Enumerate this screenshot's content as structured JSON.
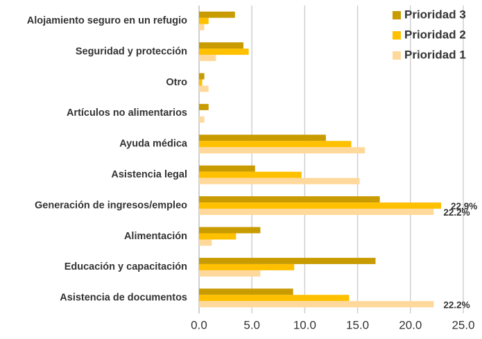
{
  "chart_data": {
    "type": "hbar",
    "categories": [
      "Alojamiento seguro en un refugio",
      "Seguridad y protección",
      "Otro",
      "Artículos no alimentarios",
      "Ayuda médica",
      "Asistencia legal",
      "Generación de ingresos/empleo",
      "Alimentación",
      "Educación y capacitación",
      "Asistencia de documentos"
    ],
    "series": [
      {
        "name": "Prioridad 3",
        "color": "#C89B00",
        "values": [
          3.4,
          4.2,
          0.5,
          0.9,
          12.0,
          5.3,
          17.1,
          5.8,
          16.7,
          8.9
        ]
      },
      {
        "name": "Prioridad 2",
        "color": "#FFC000",
        "values": [
          0.9,
          4.7,
          0.3,
          0,
          14.4,
          9.7,
          22.9,
          3.5,
          9.0,
          14.2
        ],
        "value_labels": [
          null,
          null,
          null,
          null,
          null,
          null,
          "22.9%",
          null,
          null,
          null
        ]
      },
      {
        "name": "Prioridad 1",
        "color": "#FFD89B",
        "values": [
          0.5,
          1.6,
          0.9,
          0.5,
          15.7,
          15.2,
          22.2,
          1.2,
          5.8,
          22.2
        ],
        "value_labels": [
          null,
          null,
          null,
          null,
          null,
          null,
          "22.2%",
          null,
          null,
          "22.2%"
        ]
      }
    ],
    "xlim": [
      0,
      25
    ],
    "xticks": [
      {
        "value": 0,
        "label": "0.0"
      },
      {
        "value": 5,
        "label": "5.0"
      },
      {
        "value": 10,
        "label": "10.0"
      },
      {
        "value": 15,
        "label": "15.0"
      },
      {
        "value": 20,
        "label": "20.0"
      },
      {
        "value": 25,
        "label": "25.0"
      }
    ],
    "grid": true,
    "legend": "top-right"
  }
}
